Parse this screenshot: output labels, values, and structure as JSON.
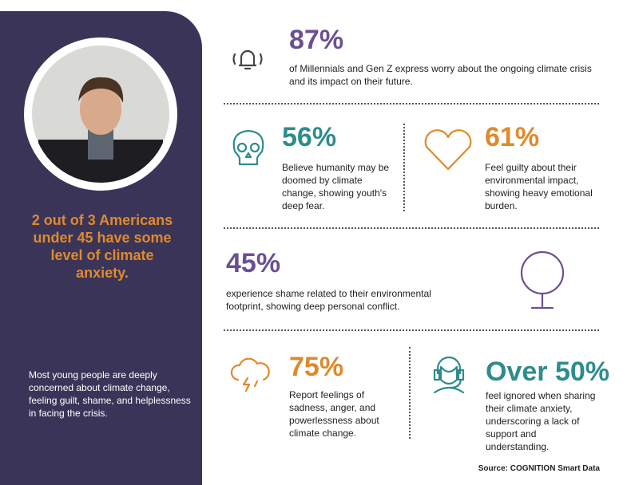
{
  "sidebar": {
    "headline": "2 out of 3 Americans under 45 have some level of climate anxiety.",
    "body": "Most young people are deeply concerned about climate change, feeling guilt, shame, and helplessness in facing the crisis."
  },
  "stats": [
    {
      "value": "87%",
      "text": "of Millennials and Gen Z express worry about the ongoing climate crisis and its impact on their future."
    },
    {
      "value": "56%",
      "text": "Believe humanity may be doomed by climate change, showing youth's deep fear."
    },
    {
      "value": "61%",
      "text": "Feel guilty about their environmental impact, showing heavy emotional burden."
    },
    {
      "value": "45%",
      "text": "experience shame related to their environmental footprint, showing deep personal conflict."
    },
    {
      "value": "75%",
      "text": "Report feelings of sadness, anger, and powerlessness about climate change."
    },
    {
      "value": "Over 50%",
      "text": "feel ignored when sharing their climate anxiety, underscoring a lack of support and understanding."
    }
  ],
  "source": "Source: COGNITION Smart Data"
}
